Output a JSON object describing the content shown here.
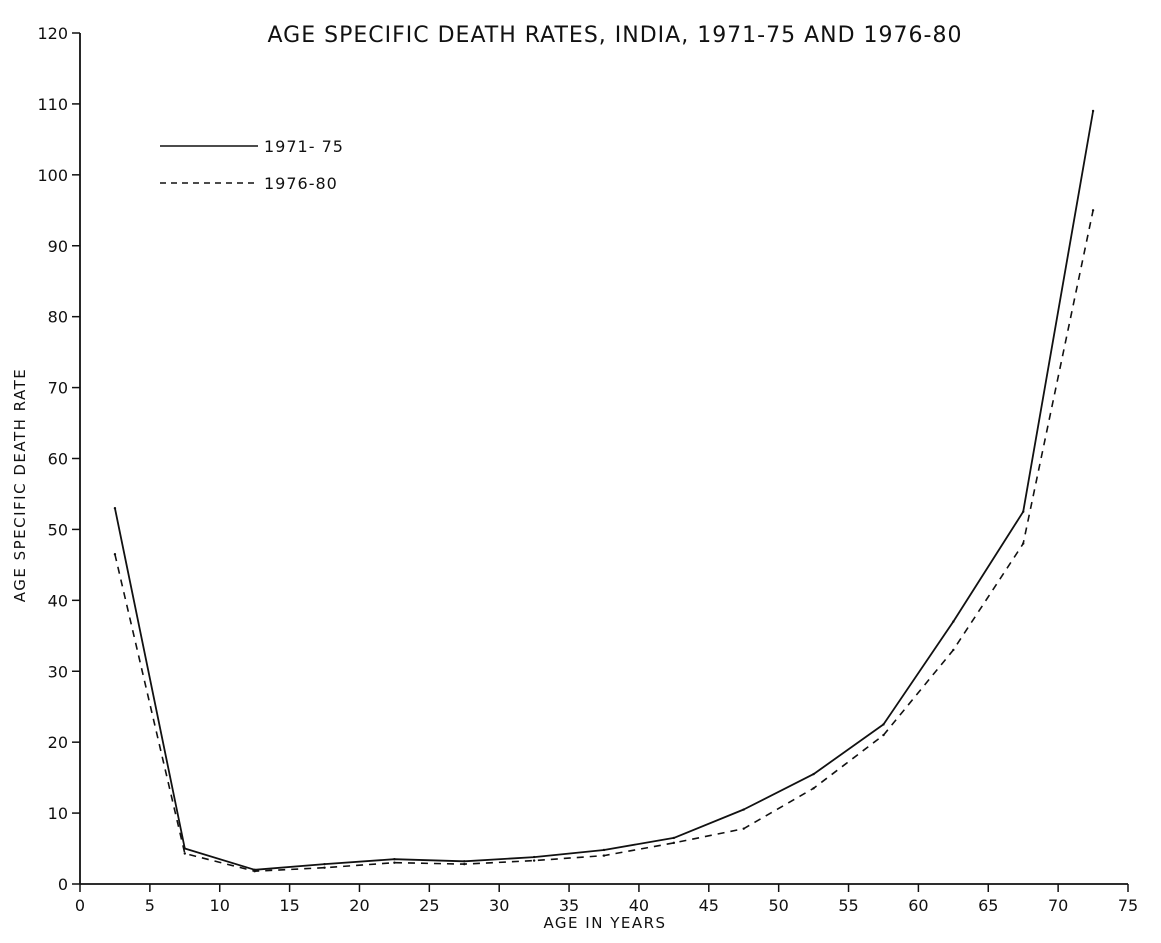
{
  "chart_data": {
    "type": "line",
    "title": "AGE SPECIFIC DEATH RATES, INDIA, 1971-75 AND 1976-80",
    "xlabel": "AGE IN YEARS",
    "ylabel": "AGE SPECIFIC DEATH RATE",
    "xlim": [
      0,
      75
    ],
    "ylim": [
      0,
      120
    ],
    "xticks": [
      "0",
      "5",
      "10",
      "15",
      "20",
      "25",
      "30",
      "35",
      "40",
      "45",
      "50",
      "55",
      "60",
      "65",
      "70",
      "75"
    ],
    "yticks": [
      "0",
      "10",
      "20",
      "30",
      "40",
      "50",
      "60",
      "70",
      "80",
      "90",
      "100",
      "110",
      "120"
    ],
    "grid": false,
    "legend_position": "top-left",
    "x": [
      2.5,
      7.5,
      12.5,
      17.5,
      22.5,
      27.5,
      32.5,
      37.5,
      42.5,
      47.5,
      52.5,
      57.5,
      62.5,
      67.5,
      72.5
    ],
    "series": [
      {
        "name": "1971- 75",
        "style": "solid",
        "values": [
          53,
          5,
          2,
          2.8,
          3.5,
          3.2,
          3.8,
          4.8,
          6.5,
          10.5,
          15.5,
          22.5,
          37,
          52.5,
          109
        ]
      },
      {
        "name": "1976-80",
        "style": "dashed",
        "values": [
          46.5,
          4.3,
          1.8,
          2.3,
          3,
          2.8,
          3.3,
          4,
          5.8,
          7.8,
          13.5,
          21,
          33,
          48,
          95
        ]
      }
    ],
    "colors": {
      "line": "#111111",
      "background": "#ffffff"
    }
  }
}
